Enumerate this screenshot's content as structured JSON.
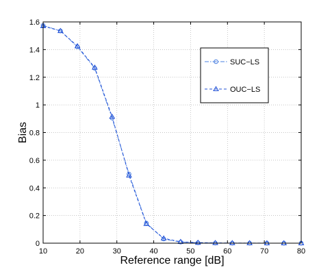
{
  "chart_data": {
    "type": "line",
    "xlabel": "Reference range [dB]",
    "ylabel": "Bias",
    "xlim": [
      10,
      80
    ],
    "ylim": [
      0,
      1.6
    ],
    "xticks": [
      10,
      20,
      30,
      40,
      50,
      60,
      70,
      80
    ],
    "yticks": [
      0,
      0.2,
      0.4,
      0.6,
      0.8,
      1,
      1.2,
      1.4,
      1.6
    ],
    "xtick_labels": [
      "10",
      "20",
      "30",
      "40",
      "50",
      "60",
      "70",
      "80"
    ],
    "ytick_labels": [
      "0",
      "0.2",
      "0.4",
      "0.6",
      "0.8",
      "1",
      "1.2",
      "1.4",
      "1.6"
    ],
    "grid": true,
    "legend_position": "upper-right",
    "x": [
      10,
      14.7,
      19.3,
      24,
      28.7,
      33.3,
      38,
      42.7,
      47.3,
      52,
      56.7,
      61.3,
      66,
      70.7,
      75.3,
      80
    ],
    "series": [
      {
        "name": "SUC−LS",
        "marker": "circle",
        "line_style": "dash-dot",
        "color": "#4a7fe0",
        "values": [
          1.575,
          1.535,
          1.42,
          1.265,
          0.905,
          0.5,
          0.145,
          0.03,
          0.008,
          0.003,
          0.001,
          0.0005,
          0.0003,
          0.0002,
          0.0001,
          0.0001
        ]
      },
      {
        "name": "OUC−LS",
        "marker": "triangle",
        "line_style": "dashed",
        "color": "#1f4fd6",
        "values": [
          1.57,
          1.535,
          1.425,
          1.27,
          0.915,
          0.49,
          0.14,
          0.035,
          0.01,
          0.004,
          0.002,
          0.001,
          0.0005,
          0.0003,
          0.0002,
          0.0001
        ]
      }
    ]
  }
}
